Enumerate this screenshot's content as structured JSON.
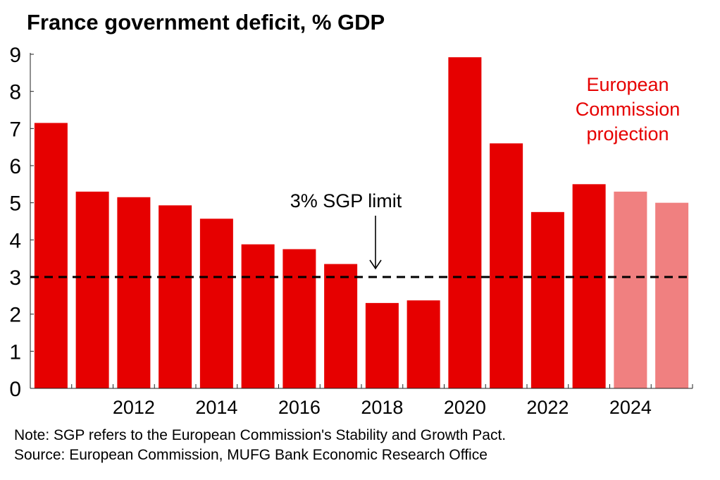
{
  "title": "France government deficit, % GDP",
  "chart_data": {
    "type": "bar",
    "categories": [
      "2010",
      "2011",
      "2012",
      "2013",
      "2014",
      "2015",
      "2016",
      "2017",
      "2018",
      "2019",
      "2020",
      "2021",
      "2022",
      "2023",
      "2024",
      "2025"
    ],
    "series": [
      {
        "values": [
          7.15,
          5.3,
          5.15,
          4.93,
          4.57,
          3.88,
          3.75,
          3.35,
          2.3,
          2.37,
          8.92,
          6.6,
          4.75,
          5.5,
          5.3,
          5.0
        ]
      }
    ],
    "projection_start_index": 14,
    "colors": {
      "actual": "#e60000",
      "projection": "#f08080",
      "annotation": "#e60000"
    },
    "x_tick_labels": [
      "2012",
      "2014",
      "2016",
      "2018",
      "2020",
      "2022",
      "2024"
    ],
    "y_ticks": [
      0,
      1,
      2,
      3,
      4,
      5,
      6,
      7,
      8,
      9
    ],
    "ylim": [
      0,
      9
    ],
    "grid": false,
    "reference_line": {
      "value": 3,
      "style": "dashed",
      "label": "3% SGP limit"
    },
    "annotation": {
      "text_lines": [
        "European",
        "Commission",
        "projection"
      ]
    },
    "xlabel": "",
    "ylabel": ""
  },
  "footnotes": {
    "note": "Note: SGP refers to the European Commission's Stability and Growth Pact.",
    "source": "Source: European Commission, MUFG Bank Economic Research Office"
  }
}
